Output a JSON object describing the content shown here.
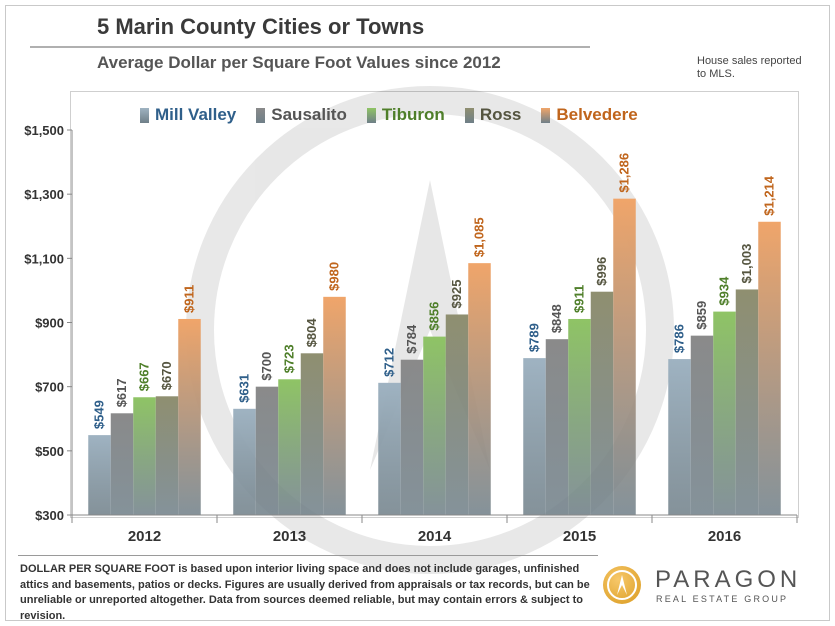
{
  "header": {
    "title": "5 Marin County Cities or Towns",
    "subtitle": "Average Dollar per Square Foot Values since 2012",
    "note": "House sales reported to MLS."
  },
  "chart_data": {
    "type": "bar",
    "categories": [
      "2012",
      "2013",
      "2014",
      "2015",
      "2016"
    ],
    "series": [
      {
        "name": "Mill Valley",
        "values": [
          549,
          631,
          712,
          789,
          786
        ],
        "color": "#9fb3c2",
        "label_color": "#2f5f8a"
      },
      {
        "name": "Sausalito",
        "values": [
          617,
          700,
          784,
          848,
          859
        ],
        "color": "#8a8a8a",
        "label_color": "#555555"
      },
      {
        "name": "Tiburon",
        "values": [
          667,
          723,
          856,
          911,
          934
        ],
        "color": "#8fc465",
        "label_color": "#4f7f2a"
      },
      {
        "name": "Ross",
        "values": [
          670,
          804,
          925,
          996,
          1003
        ],
        "color": "#8f8f70",
        "label_color": "#555540"
      },
      {
        "name": "Belvedere",
        "values": [
          911,
          980,
          1085,
          1286,
          1214
        ],
        "color": "#f0a56a",
        "label_color": "#c0651c"
      }
    ],
    "value_labels": [
      [
        "$549",
        "$617",
        "$667",
        "$670",
        "$911"
      ],
      [
        "$631",
        "$700",
        "$723",
        "$804",
        "$980"
      ],
      [
        "$712",
        "$784",
        "$856",
        "$925",
        "$1,085"
      ],
      [
        "$789",
        "$848",
        "$911",
        "$996",
        "$1,286"
      ],
      [
        "$786",
        "$859",
        "$934",
        "$1,003",
        "$1,214"
      ]
    ],
    "yticks": [
      300,
      500,
      700,
      900,
      1100,
      1300,
      1500
    ],
    "ytick_labels": [
      "$300",
      "$500",
      "$700",
      "$900",
      "$1,100",
      "$1,300",
      "$1,500"
    ],
    "ylim": [
      300,
      1500
    ],
    "xlabel": "",
    "ylabel": "",
    "legend_position": "top",
    "grid": false
  },
  "footnote": "DOLLAR PER SQUARE FOOT is based upon interior living space and does not include garages, unfinished attics and basements, patios or decks. Figures are usually derived from appraisals or tax records, but can be unreliable or unreported altogether. Data from sources deemed reliable, but may contain errors & subject to revision.",
  "logo": {
    "name": "PARAGON",
    "tagline": "REAL ESTATE GROUP"
  }
}
